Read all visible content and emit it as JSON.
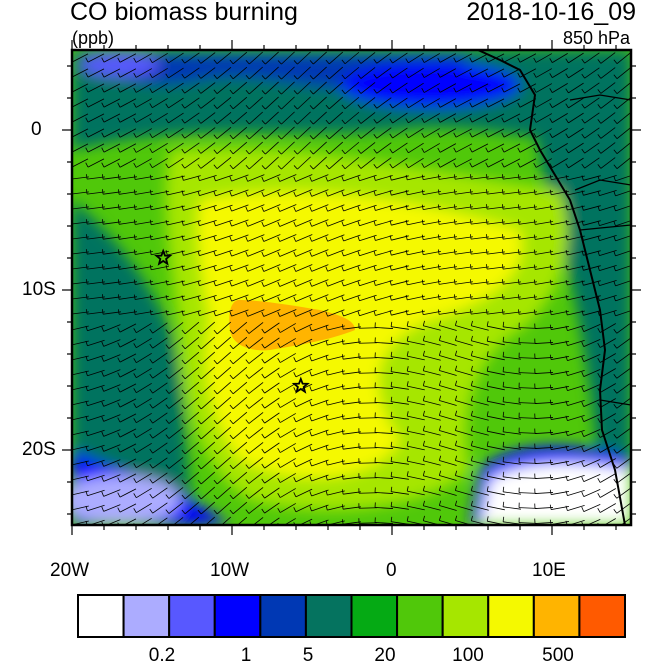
{
  "title": "CO biomass burning",
  "date": "2018-10-16_09",
  "units": "(ppb)",
  "level": "850 hPa",
  "map": {
    "lon_range": [
      "20W",
      "15E"
    ],
    "lat_range": [
      "25S",
      "5N"
    ],
    "lon_ticks": [
      "20W",
      "10W",
      "0",
      "10E"
    ],
    "lat_ticks": [
      "0",
      "10S",
      "20S"
    ],
    "markers": [
      {
        "type": "star",
        "lon": -14.3,
        "lat": -8.0
      },
      {
        "type": "star",
        "lon": -5.7,
        "lat": -16.0
      }
    ],
    "overlay": "wind barbs"
  },
  "colorbar": {
    "colors": [
      "#ffffff",
      "#acacff",
      "#5858ff",
      "#0000ff",
      "#0038b4",
      "#05735f",
      "#05aa14",
      "#50c80a",
      "#a6e600",
      "#f5f900",
      "#ffb400",
      "#ff5a00",
      "#ff0a00"
    ],
    "labels": [
      "0.2",
      "1",
      "5",
      "20",
      "100",
      "500"
    ]
  }
}
